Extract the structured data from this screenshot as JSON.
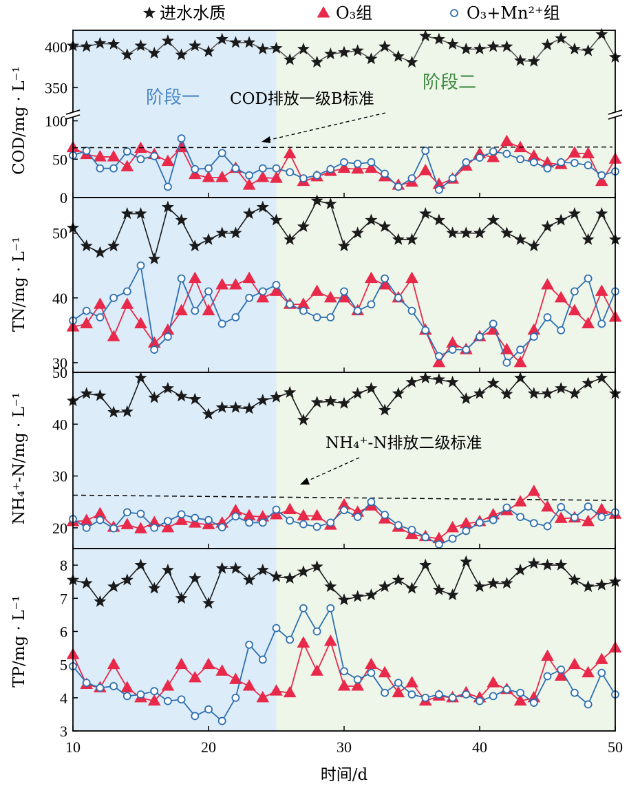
{
  "chart_data": {
    "type": "line",
    "x": [
      10,
      11,
      12,
      13,
      14,
      15,
      16,
      17,
      18,
      19,
      20,
      21,
      22,
      23,
      24,
      25,
      26,
      27,
      28,
      29,
      30,
      31,
      32,
      33,
      34,
      35,
      36,
      37,
      38,
      39,
      40,
      41,
      42,
      43,
      44,
      45,
      46,
      47,
      48,
      49,
      50
    ],
    "xlabel": "时间/d",
    "xlim": [
      10,
      50
    ],
    "xticks": [
      "10",
      "20",
      "30",
      "40",
      "50"
    ],
    "legend": [
      {
        "name": "进水水质",
        "marker": "star"
      },
      {
        "name": "O₃组",
        "marker": "triangle"
      },
      {
        "name": "O₃+Mn²⁺组",
        "marker": "circle"
      }
    ],
    "colors": {
      "influent": "#1a1a1a",
      "o3": "#e8294a",
      "o3mn": "#2e6fb0",
      "stage1_bg": "#dcecf9",
      "stage2_bg": "#eef6ea",
      "stage1_text": "#4a86c5",
      "stage2_text": "#3f8a3f"
    },
    "stages": [
      {
        "label": "阶段一",
        "from": 10,
        "to": 25
      },
      {
        "label": "阶段二",
        "from": 25,
        "to": 50
      }
    ],
    "panels": [
      {
        "id": "cod",
        "ylabel": "COD/mg · L⁻¹",
        "upper_range": [
          320,
          420
        ],
        "lower_range": [
          0,
          105
        ],
        "upper_ticks": [
          "400",
          "350"
        ],
        "lower_ticks": [
          "100",
          "50",
          "0"
        ],
        "annotation": "COD排放一级B标准",
        "standard": [
          65,
          65
        ],
        "influent": [
          401,
          400,
          404,
          403,
          390,
          401,
          392,
          407,
          390,
          401,
          394,
          409,
          405,
          405,
          397,
          398,
          384,
          397,
          381,
          391,
          393,
          395,
          385,
          400,
          388,
          381,
          413,
          409,
          403,
          397,
          397,
          400,
          400,
          383,
          382,
          402,
          410,
          397,
          395,
          415,
          387
        ],
        "o3": [
          65,
          56,
          53,
          53,
          40,
          64,
          56,
          47,
          65,
          30,
          26,
          26,
          38,
          16,
          26,
          25,
          57,
          21,
          27,
          34,
          38,
          37,
          38,
          27,
          16,
          20,
          35,
          17,
          24,
          41,
          57,
          52,
          73,
          65,
          54,
          45,
          43,
          58,
          57,
          21,
          50
        ],
        "o3mn": [
          55,
          61,
          38,
          38,
          60,
          50,
          54,
          14,
          77,
          37,
          38,
          58,
          38,
          29,
          38,
          38,
          33,
          25,
          29,
          37,
          46,
          44,
          46,
          31,
          14,
          25,
          61,
          10,
          25,
          46,
          52,
          60,
          57,
          50,
          46,
          38,
          46,
          45,
          42,
          29,
          34
        ]
      },
      {
        "id": "tn",
        "ylabel": "TN/mg · L⁻¹",
        "range": [
          28.5,
          55.5
        ],
        "ticks": [
          "50",
          "40",
          "30"
        ],
        "influent": [
          50.8,
          48,
          47,
          48,
          53,
          53,
          46,
          54,
          52,
          48,
          49,
          50,
          50,
          53,
          54,
          52,
          49,
          51,
          55,
          54.5,
          48,
          50,
          52,
          51,
          49,
          49,
          53,
          52,
          50,
          50,
          50,
          52,
          50,
          49,
          48,
          51,
          52,
          53,
          49,
          53,
          49
        ],
        "o3": [
          35.5,
          36,
          39,
          34,
          39,
          36,
          33,
          35,
          38,
          43,
          38,
          42,
          42,
          43,
          40,
          41,
          39,
          39,
          41,
          40,
          40,
          38,
          43,
          42,
          40,
          43,
          35,
          30,
          33,
          32,
          34,
          35,
          32,
          30,
          35,
          42,
          40,
          38,
          36,
          41,
          37
        ],
        "o3mn": [
          36.5,
          38,
          37,
          40,
          41,
          45,
          32,
          34,
          43,
          38,
          41,
          36,
          37,
          40,
          41,
          42,
          39,
          38,
          37,
          37,
          41,
          38,
          39,
          43,
          40,
          38,
          35,
          31,
          32,
          32,
          34,
          36,
          30,
          32,
          34,
          37,
          35,
          41,
          43,
          36,
          41
        ]
      },
      {
        "id": "nh4",
        "ylabel": "NH₄⁺-N/mg · L⁻¹",
        "range": [
          16,
          50
        ],
        "ticks": [
          "50",
          "40",
          "30",
          "20"
        ],
        "annotation": "NH₄⁺-N排放二级标准",
        "standard": [
          26.3,
          25.3
        ],
        "influent": [
          44.5,
          45.9,
          45.5,
          42.3,
          42.4,
          48.9,
          45.1,
          46.9,
          45.4,
          44.8,
          41.9,
          43.2,
          43.2,
          43,
          44.6,
          45.2,
          46.1,
          40.8,
          44.2,
          44.4,
          44,
          45.9,
          46.9,
          42.7,
          45.9,
          48.1,
          48.9,
          48.6,
          48.1,
          44.9,
          45.9,
          47.9,
          45.8,
          48.9,
          45.9,
          45.9,
          46.9,
          45.9,
          47.9,
          48.9,
          45.9
        ],
        "o3": [
          21.2,
          21.4,
          22.7,
          20.1,
          20.6,
          19.8,
          21,
          20,
          21.4,
          20.9,
          20.6,
          20.9,
          23.3,
          22.3,
          22.1,
          22.5,
          23.5,
          22.3,
          22.3,
          20.5,
          24.4,
          23,
          24.2,
          21.7,
          20.1,
          18.7,
          18.3,
          17.9,
          20,
          20.8,
          21.2,
          22.5,
          23.3,
          25,
          27,
          24,
          21.8,
          21.9,
          21.2,
          23.5,
          22.6
        ],
        "o3mn": [
          21.7,
          20,
          21.5,
          19.9,
          23,
          22.7,
          20,
          21.3,
          22.6,
          21.9,
          21.5,
          20.1,
          22.2,
          21,
          21,
          23.5,
          21.4,
          20.7,
          20.2,
          21,
          23.4,
          22.1,
          25,
          22.5,
          20.5,
          19.6,
          18.2,
          16.8,
          17.9,
          19.4,
          21,
          21.5,
          23.9,
          22.1,
          20.9,
          20.3,
          24,
          22,
          24.1,
          22.1,
          23
        ]
      },
      {
        "id": "tp",
        "ylabel": "TP/mg · L⁻¹",
        "range": [
          3,
          8.5
        ],
        "ticks": [
          "8",
          "7",
          "6",
          "5",
          "4",
          "3"
        ],
        "influent": [
          7.55,
          7.45,
          6.9,
          7.35,
          7.55,
          8,
          7.3,
          7.85,
          7,
          7.6,
          6.85,
          7.9,
          7.9,
          7.55,
          7.85,
          7.65,
          7.6,
          7.8,
          7.95,
          7.35,
          6.95,
          7.05,
          7.1,
          7.35,
          7.55,
          7.3,
          8,
          7.25,
          7.1,
          8.1,
          7.35,
          7.45,
          7.45,
          7.85,
          8.05,
          8,
          8,
          7.55,
          7.35,
          7.4,
          7.5
        ],
        "o3": [
          5.3,
          4.4,
          4.3,
          5,
          4.3,
          4,
          3.9,
          4.35,
          5,
          4.6,
          5,
          4.8,
          4.55,
          4.35,
          4,
          4.2,
          4.15,
          5.65,
          4.8,
          5.7,
          4.35,
          4.35,
          5,
          4.75,
          4.15,
          4.45,
          3.9,
          4.05,
          4,
          4.15,
          4,
          4.45,
          4.25,
          3.9,
          4,
          5.25,
          4.65,
          5,
          4.75,
          5.15,
          5.5
        ],
        "o3mn": [
          4.95,
          4.45,
          4.3,
          4.35,
          4.05,
          4.1,
          4.2,
          3.9,
          3.95,
          3.45,
          3.65,
          3.3,
          4,
          5.6,
          5.15,
          6.1,
          5.75,
          6.7,
          6,
          6.7,
          4.8,
          4.55,
          4.75,
          4.15,
          4.45,
          4.1,
          4,
          4.1,
          4,
          4.1,
          3.9,
          4.05,
          4.25,
          4.15,
          3.85,
          4.65,
          4.85,
          4.15,
          3.8,
          4.75,
          4.1
        ]
      }
    ]
  }
}
